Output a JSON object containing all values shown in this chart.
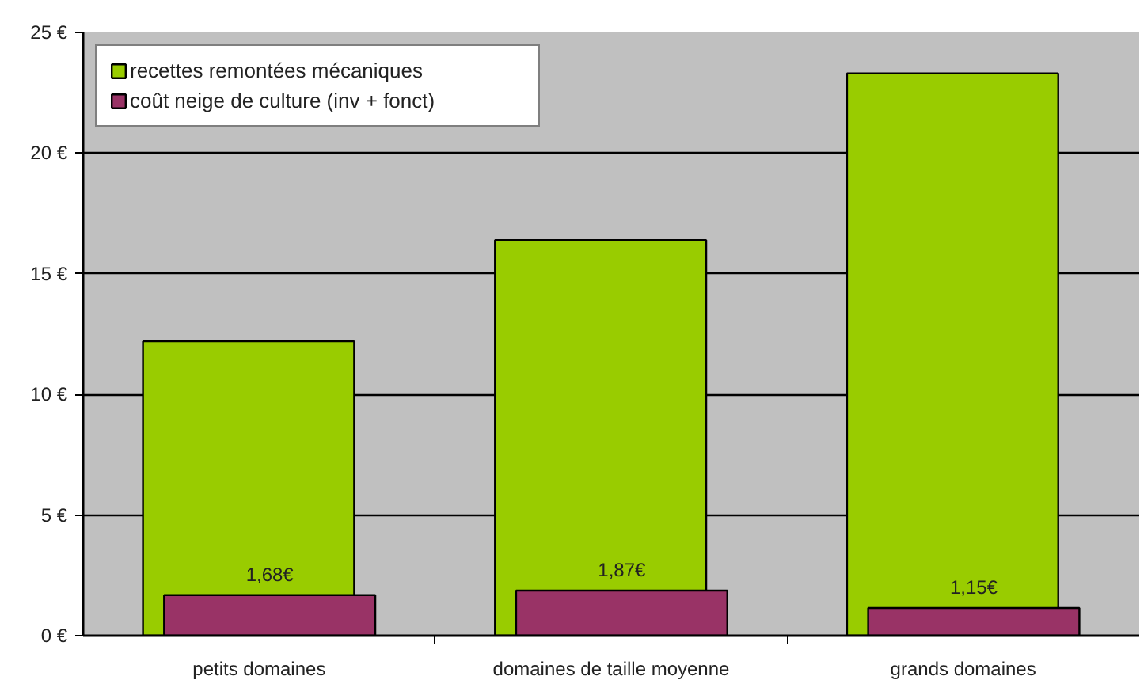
{
  "chart_data": {
    "type": "bar",
    "categories": [
      "petits domaines",
      "domaines de taille moyenne",
      "grands domaines"
    ],
    "series": [
      {
        "name": "recettes remontées mécaniques",
        "color": "#99cc00",
        "values": [
          12.2,
          16.4,
          23.3
        ]
      },
      {
        "name": "coût neige de culture (inv + fonct)",
        "color": "#993366",
        "values": [
          1.68,
          1.87,
          1.15
        ],
        "value_labels": [
          "1,68€",
          "1,87€",
          "1,15€"
        ]
      }
    ],
    "ylim": [
      0,
      25
    ],
    "yticks": [
      {
        "value": 0,
        "label": "0 €"
      },
      {
        "value": 5,
        "label": "5 €"
      },
      {
        "value": 10,
        "label": "10 €"
      },
      {
        "value": 15,
        "label": "15 €"
      },
      {
        "value": 20,
        "label": "20 €"
      },
      {
        "value": 25,
        "label": "25 €"
      }
    ],
    "grid": "y",
    "legend": "top left"
  }
}
